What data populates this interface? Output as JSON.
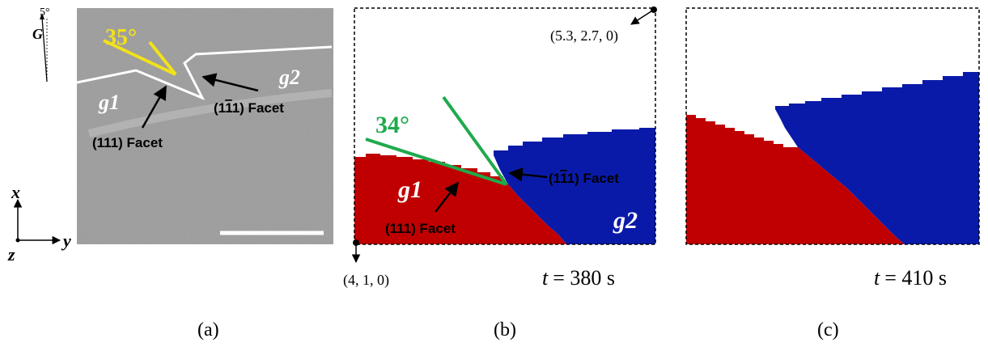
{
  "colors": {
    "grain1": "#c00000",
    "grain2": "#0a1aa8",
    "green": "#1faa4d",
    "yellow": "#f2e21a",
    "micrograph_bg": "#a9a9a9",
    "boundary": "#ffffff"
  },
  "axes": {
    "x_label": "x",
    "y_label": "y",
    "z_label": "z"
  },
  "gravity": {
    "label": "G",
    "angle_label": "5°"
  },
  "panel_a": {
    "caption": "(a)",
    "angle_label": "35°",
    "grain1_label": "g1",
    "grain2_label": "g2",
    "facet_111": "(111) Facet",
    "facet_1bar11_pre": "(1",
    "facet_1bar11_bar": "1",
    "facet_1bar11_post": "1) Facet"
  },
  "panel_b": {
    "caption": "(b)",
    "angle_label": "34°",
    "grain1_label": "g1",
    "grain2_label": "g2",
    "facet_111": "(111) Facet",
    "facet_1bar11_pre": "(1",
    "facet_1bar11_bar": "1",
    "facet_1bar11_post": "1) Facet",
    "coord_top_right": "(5.3, 2.7, 0)",
    "coord_bottom_left": "(4, 1, 0)",
    "time_var": "t",
    "time_value": "= 380 s"
  },
  "panel_c": {
    "caption": "(c)",
    "time_var": "t",
    "time_value": "= 410 s"
  }
}
